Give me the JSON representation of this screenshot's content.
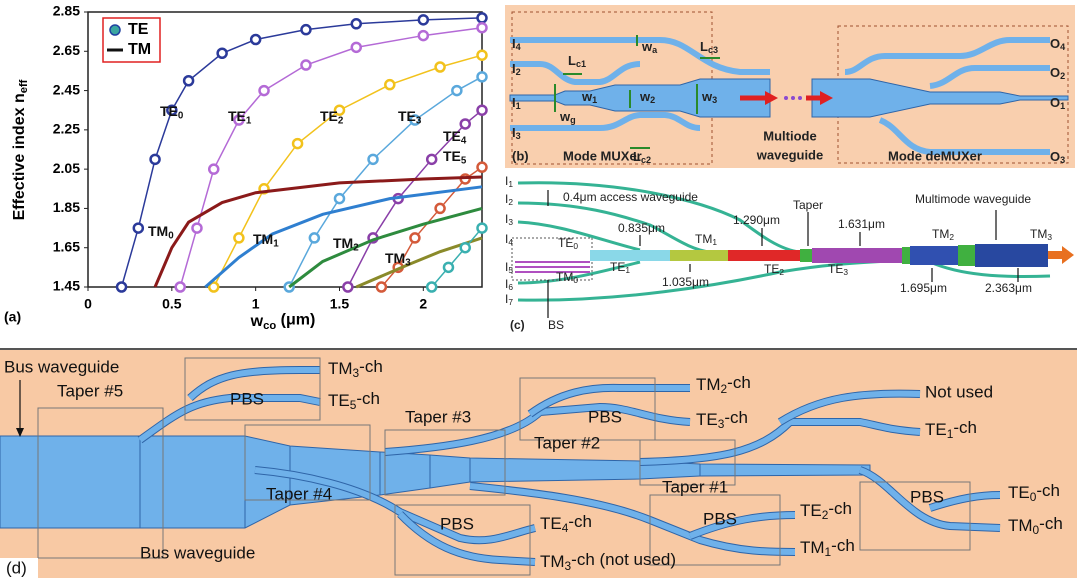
{
  "chart_data": {
    "type": "line",
    "panel_label": "(a)",
    "y_label": [
      "Effective index n",
      "eff"
    ],
    "x_label": [
      "w",
      "co",
      " (μm)"
    ],
    "xlim": [
      0,
      2.35
    ],
    "ylim": [
      1.45,
      2.85
    ],
    "xticks": [
      0,
      0.5,
      1,
      1.5,
      2
    ],
    "yticks": [
      1.45,
      1.65,
      1.85,
      2.05,
      2.25,
      2.45,
      2.65,
      2.85
    ],
    "legend": {
      "position": "upper left",
      "entries": [
        {
          "label": "TE",
          "marker": "circle",
          "color": "#3aa6a0"
        },
        {
          "label": "TM",
          "marker": "line",
          "color": "#111111"
        }
      ]
    },
    "series": [
      {
        "name": [
          "TE",
          "0"
        ],
        "marker": "circle",
        "color": "#2b3a9a",
        "x": [
          0.2,
          0.3,
          0.4,
          0.5,
          0.6,
          0.8,
          1.0,
          1.3,
          1.6,
          2.0,
          2.35
        ],
        "values": [
          1.45,
          1.75,
          2.1,
          2.35,
          2.5,
          2.64,
          2.71,
          2.76,
          2.79,
          2.81,
          2.82
        ]
      },
      {
        "name": [
          "TE",
          "1"
        ],
        "marker": "circle",
        "color": "#b46ad6",
        "x": [
          0.55,
          0.65,
          0.75,
          0.9,
          1.05,
          1.3,
          1.6,
          2.0,
          2.35
        ],
        "values": [
          1.45,
          1.75,
          2.05,
          2.3,
          2.45,
          2.58,
          2.67,
          2.73,
          2.77
        ]
      },
      {
        "name": [
          "TE",
          "2"
        ],
        "marker": "circle",
        "color": "#f2c21c",
        "x": [
          0.75,
          0.9,
          1.05,
          1.25,
          1.5,
          1.8,
          2.1,
          2.35
        ],
        "values": [
          1.45,
          1.7,
          1.95,
          2.18,
          2.35,
          2.48,
          2.57,
          2.63
        ]
      },
      {
        "name": [
          "TE",
          "3"
        ],
        "marker": "circle",
        "color": "#5aa8dc",
        "x": [
          1.2,
          1.35,
          1.5,
          1.7,
          1.95,
          2.2,
          2.35
        ],
        "values": [
          1.45,
          1.7,
          1.9,
          2.1,
          2.3,
          2.45,
          2.52
        ]
      },
      {
        "name": [
          "TE",
          "4"
        ],
        "marker": "circle",
        "color": "#8a3fa8",
        "x": [
          1.55,
          1.7,
          1.85,
          2.05,
          2.25,
          2.35
        ],
        "values": [
          1.45,
          1.7,
          1.9,
          2.1,
          2.28,
          2.35
        ]
      },
      {
        "name": [
          "TE",
          "5"
        ],
        "marker": "circle",
        "color": "#d45a3a",
        "x": [
          1.75,
          1.85,
          1.95,
          2.1,
          2.25,
          2.35
        ],
        "values": [
          1.45,
          1.55,
          1.7,
          1.85,
          2.0,
          2.06
        ]
      },
      {
        "name": [
          "TM",
          "0"
        ],
        "marker": "line",
        "color": "#8b1a1a",
        "x": [
          0.4,
          0.5,
          0.6,
          0.8,
          1.0,
          1.5,
          2.0,
          2.35
        ],
        "values": [
          1.45,
          1.65,
          1.78,
          1.88,
          1.93,
          1.98,
          2.0,
          2.01
        ]
      },
      {
        "name": [
          "TM",
          "1"
        ],
        "marker": "line",
        "color": "#2f7fd0",
        "x": [
          0.7,
          0.9,
          1.1,
          1.4,
          1.8,
          2.35
        ],
        "values": [
          1.45,
          1.6,
          1.72,
          1.82,
          1.9,
          1.96
        ]
      },
      {
        "name": [
          "TM",
          "2"
        ],
        "marker": "line",
        "color": "#2e8b3e",
        "x": [
          1.2,
          1.4,
          1.7,
          2.0,
          2.35
        ],
        "values": [
          1.45,
          1.58,
          1.69,
          1.77,
          1.85
        ]
      },
      {
        "name": [
          "TM",
          "3"
        ],
        "marker": "line",
        "color": "#8a8a2a",
        "x": [
          1.6,
          1.9,
          2.1,
          2.35
        ],
        "values": [
          1.45,
          1.56,
          1.63,
          1.7
        ]
      },
      {
        "marker": "circle",
        "color": "#3ab0b0",
        "x": [
          2.05,
          2.15,
          2.25,
          2.35
        ],
        "values": [
          1.45,
          1.55,
          1.65,
          1.75
        ]
      }
    ]
  },
  "panel_b": {
    "label": "(b)",
    "inputs": [
      [
        "I",
        "4"
      ],
      [
        "I",
        "2"
      ],
      [
        "I",
        "1"
      ],
      [
        "I",
        "3"
      ]
    ],
    "outputs": [
      [
        "O",
        "4"
      ],
      [
        "O",
        "2"
      ],
      [
        "O",
        "1"
      ],
      [
        "O",
        "3"
      ]
    ],
    "dimensions": [
      [
        "L",
        "c1"
      ],
      [
        "L",
        "c3"
      ],
      [
        "L",
        "c2"
      ],
      [
        "w",
        "a"
      ],
      [
        "w",
        "1"
      ],
      [
        "w",
        "2"
      ],
      [
        "w",
        "3"
      ],
      [
        "w",
        "g"
      ]
    ],
    "mux": "Mode MUXer",
    "middle": [
      "Multiode",
      "waveguide"
    ],
    "demux": "Mode deMUXer"
  },
  "panel_c": {
    "label": "(c)",
    "inputs": [
      [
        "I",
        "1"
      ],
      [
        "I",
        "2"
      ],
      [
        "I",
        "3"
      ],
      [
        "I",
        "4"
      ],
      [
        "I",
        "5"
      ],
      [
        "I",
        "6"
      ],
      [
        "I",
        "7"
      ]
    ],
    "notes": [
      "0.4μm access waveguide",
      "0.835μm",
      "1.290μm",
      "Taper",
      "1.631μm",
      "Multimode waveguide",
      "1.035μm",
      "1.695μm",
      "2.363μm",
      "BS"
    ],
    "modes": [
      [
        "TE",
        "0"
      ],
      [
        "TM",
        "1"
      ],
      [
        "TE",
        "1"
      ],
      [
        "TM",
        "0"
      ],
      [
        "TE",
        "2"
      ],
      [
        "TE",
        "3"
      ],
      [
        "TM",
        "2"
      ],
      [
        "TM",
        "3"
      ]
    ]
  },
  "panel_d": {
    "label": "(d)",
    "labels": [
      "Bus waveguide",
      "Taper #5",
      "PBS",
      [
        "TM",
        "3",
        "-ch"
      ],
      [
        "TE",
        "5",
        "-ch"
      ],
      "Taper #3",
      [
        "TM",
        "2",
        "-ch"
      ],
      "PBS",
      [
        "TE",
        "3",
        "-ch"
      ],
      "Not used",
      [
        "TE",
        "1",
        "-ch"
      ],
      "Taper #2",
      "Taper #4",
      "Taper #1",
      "PBS",
      [
        "TE",
        "4",
        "-ch"
      ],
      [
        "TM",
        "3",
        "-ch (not used)"
      ],
      "PBS",
      [
        "TE",
        "2",
        "-ch"
      ],
      [
        "TM",
        "1",
        "-ch"
      ],
      "PBS",
      [
        "TE",
        "0",
        "-ch"
      ],
      [
        "TM",
        "0",
        "-ch"
      ],
      "Bus waveguide"
    ]
  }
}
